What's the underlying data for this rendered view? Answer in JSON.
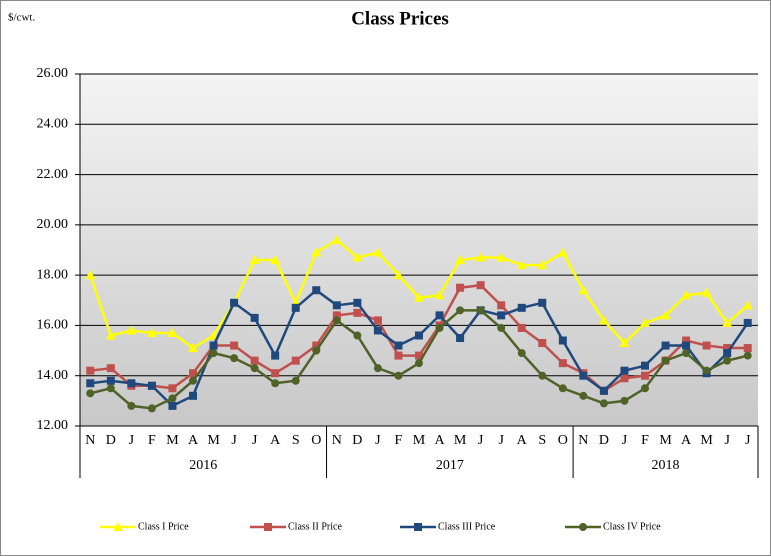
{
  "chart_data": {
    "type": "line",
    "title": "Class Prices",
    "y_label": "$/cwt.",
    "category_groups": [
      {
        "label": "2016",
        "categories": [
          "N",
          "D",
          "J",
          "F",
          "M",
          "A",
          "M",
          "J",
          "J",
          "A",
          "S",
          "O"
        ]
      },
      {
        "label": "2017",
        "categories": [
          "N",
          "D",
          "J",
          "F",
          "M",
          "A",
          "M",
          "J",
          "J",
          "A",
          "S",
          "O"
        ]
      },
      {
        "label": "2018",
        "categories": [
          "N",
          "D",
          "J",
          "F",
          "M",
          "A",
          "M",
          "J",
          "J"
        ]
      }
    ],
    "ylim": [
      12,
      26
    ],
    "yticks": [
      {
        "value": 12,
        "label": "12.00"
      },
      {
        "value": 14,
        "label": "14.00"
      },
      {
        "value": 16,
        "label": "16.00"
      },
      {
        "value": 18,
        "label": "18.00"
      },
      {
        "value": 20,
        "label": "20.00"
      },
      {
        "value": 22,
        "label": "22.00"
      },
      {
        "value": 24,
        "label": "24.00"
      },
      {
        "value": 26,
        "label": "26.00"
      }
    ],
    "grid": true,
    "legend": "bottom",
    "series": [
      {
        "name": "Class I Price",
        "color": "#ffff00",
        "marker": "triangle",
        "values": [
          18.0,
          15.6,
          15.8,
          15.7,
          15.7,
          15.1,
          15.6,
          16.9,
          18.6,
          18.6,
          16.9,
          18.9,
          19.4,
          18.7,
          18.9,
          18.0,
          17.1,
          17.2,
          18.6,
          18.7,
          18.7,
          18.4,
          18.4,
          18.9,
          17.4,
          16.2,
          15.3,
          16.1,
          16.4,
          17.2,
          17.3,
          16.1,
          16.8
        ]
      },
      {
        "name": "Class II Price",
        "color": "#c0504d",
        "marker": "square",
        "values": [
          14.2,
          14.3,
          13.6,
          13.6,
          13.5,
          14.1,
          15.2,
          15.2,
          14.6,
          14.1,
          14.6,
          15.2,
          16.4,
          16.5,
          16.2,
          14.8,
          14.8,
          16.0,
          17.5,
          17.6,
          16.8,
          15.9,
          15.3,
          14.5,
          14.1,
          13.4,
          13.9,
          14.0,
          14.6,
          15.4,
          15.2,
          15.1,
          15.1
        ]
      },
      {
        "name": "Class III Price",
        "color": "#1f497d",
        "marker": "square",
        "values": [
          13.7,
          13.8,
          13.7,
          13.6,
          12.8,
          13.2,
          15.2,
          16.9,
          16.3,
          14.8,
          16.7,
          17.4,
          16.8,
          16.9,
          15.8,
          15.2,
          15.6,
          16.4,
          15.5,
          16.6,
          16.4,
          16.7,
          16.9,
          15.4,
          14.0,
          13.4,
          14.2,
          14.4,
          15.2,
          15.2,
          14.1,
          14.9,
          16.1
        ]
      },
      {
        "name": "Class IV Price",
        "color": "#4f6228",
        "marker": "circle",
        "values": [
          13.3,
          13.5,
          12.8,
          12.7,
          13.1,
          13.8,
          14.9,
          14.7,
          14.3,
          13.7,
          13.8,
          15.0,
          16.2,
          15.6,
          14.3,
          14.0,
          14.5,
          15.9,
          16.6,
          16.6,
          15.9,
          14.9,
          14.0,
          13.5,
          13.2,
          12.9,
          13.0,
          13.5,
          14.6,
          14.9,
          14.2,
          14.6,
          14.8
        ]
      }
    ]
  }
}
